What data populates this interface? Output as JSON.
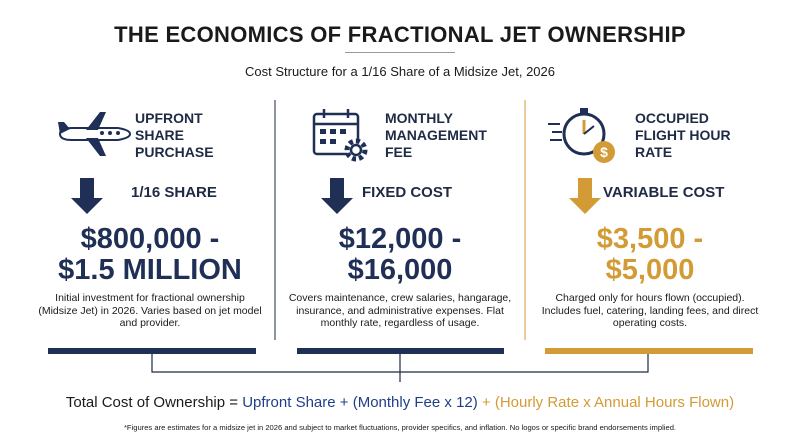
{
  "header": {
    "title": "THE ECONOMICS OF FRACTIONAL JET OWNERSHIP",
    "subtitle": "Cost Structure for a 1/16 Share of a Midsize Jet, 2026"
  },
  "columns": [
    {
      "heading": [
        "UPFRONT",
        "SHARE",
        "PURCHASE"
      ],
      "tag": "1/16 SHARE",
      "price": [
        "$800,000 -",
        "$1.5 MILLION"
      ],
      "description": "Initial investment for fractional ownership (Midsize Jet) in 2026. Varies based on jet model and provider."
    },
    {
      "heading": [
        "MONTHLY",
        "MANAGEMENT",
        "FEE"
      ],
      "tag": "FIXED COST",
      "price": [
        "$12,000 -",
        "$16,000"
      ],
      "description": "Covers maintenance, crew salaries, hangarage, insurance, and administrative expenses. Flat monthly rate, regardless of usage."
    },
    {
      "heading": [
        "OCCUPIED",
        "FLIGHT HOUR",
        "RATE"
      ],
      "tag": "VARIABLE COST",
      "price": [
        "$3,500 -",
        "$5,000"
      ],
      "description": "Charged only for hours flown (occupied). Includes fuel, catering, landing fees, and direct operating costs."
    }
  ],
  "formula": [
    "Total Cost of Ownership = ",
    "Upfront Share + (Monthly Fee x 12)",
    " + (Hourly Rate x Annual Hours Flown)"
  ],
  "footnote": "*Figures are estimates for a midsize jet in 2026 and subject to market fluctuations, provider specifics, and inflation. No logos or specific brand endorsements implied."
}
